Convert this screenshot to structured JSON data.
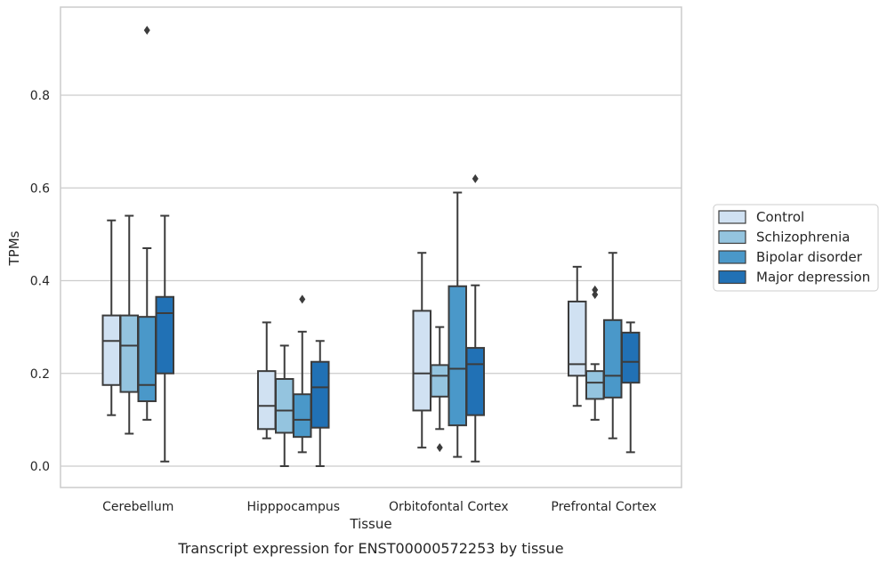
{
  "caption": "Transcript expression for ENST00000572253 by tissue",
  "colors": {
    "Control": "#d0e1f2",
    "Schizophrenia": "#94c4df",
    "Bipolar disorder": "#4a98c9",
    "Major depression": "#2171b5",
    "line": "#3c3c3c",
    "grid": "#cccccc",
    "frame": "#cccccc"
  },
  "chart_data": {
    "type": "box",
    "xlabel": "Tissue",
    "ylabel": "TPMs",
    "ylim": [
      -0.045,
      0.99
    ],
    "yticks": [
      0.0,
      0.2,
      0.4,
      0.6,
      0.8
    ],
    "ytick_labels": [
      "0.0",
      "0.2",
      "0.4",
      "0.6",
      "0.8"
    ],
    "grid": true,
    "legend_position": "right",
    "categories": [
      "Cerebellum",
      "Hipppocampus",
      "Orbitofontal Cortex",
      "Prefrontal Cortex"
    ],
    "series": [
      {
        "name": "Control",
        "boxes": [
          {
            "whislo": 0.11,
            "q1": 0.175,
            "med": 0.27,
            "q3": 0.325,
            "whishi": 0.53,
            "fliers": []
          },
          {
            "whislo": 0.06,
            "q1": 0.08,
            "med": 0.13,
            "q3": 0.205,
            "whishi": 0.31,
            "fliers": []
          },
          {
            "whislo": 0.04,
            "q1": 0.12,
            "med": 0.2,
            "q3": 0.335,
            "whishi": 0.46,
            "fliers": []
          },
          {
            "whislo": 0.13,
            "q1": 0.195,
            "med": 0.22,
            "q3": 0.355,
            "whishi": 0.43,
            "fliers": []
          }
        ]
      },
      {
        "name": "Schizophrenia",
        "boxes": [
          {
            "whislo": 0.07,
            "q1": 0.16,
            "med": 0.26,
            "q3": 0.325,
            "whishi": 0.54,
            "fliers": []
          },
          {
            "whislo": 0.0,
            "q1": 0.072,
            "med": 0.12,
            "q3": 0.188,
            "whishi": 0.26,
            "fliers": []
          },
          {
            "whislo": 0.08,
            "q1": 0.15,
            "med": 0.195,
            "q3": 0.218,
            "whishi": 0.3,
            "fliers": [
              0.04
            ]
          },
          {
            "whislo": 0.1,
            "q1": 0.145,
            "med": 0.18,
            "q3": 0.205,
            "whishi": 0.22,
            "fliers": [
              0.37,
              0.38
            ]
          }
        ]
      },
      {
        "name": "Bipolar disorder",
        "boxes": [
          {
            "whislo": 0.1,
            "q1": 0.14,
            "med": 0.175,
            "q3": 0.322,
            "whishi": 0.47,
            "fliers": [
              0.94
            ]
          },
          {
            "whislo": 0.03,
            "q1": 0.063,
            "med": 0.1,
            "q3": 0.155,
            "whishi": 0.29,
            "fliers": [
              0.36
            ]
          },
          {
            "whislo": 0.02,
            "q1": 0.088,
            "med": 0.21,
            "q3": 0.388,
            "whishi": 0.59,
            "fliers": []
          },
          {
            "whislo": 0.06,
            "q1": 0.148,
            "med": 0.195,
            "q3": 0.315,
            "whishi": 0.46,
            "fliers": []
          }
        ]
      },
      {
        "name": "Major depression",
        "boxes": [
          {
            "whislo": 0.01,
            "q1": 0.2,
            "med": 0.33,
            "q3": 0.365,
            "whishi": 0.54,
            "fliers": []
          },
          {
            "whislo": 0.0,
            "q1": 0.083,
            "med": 0.17,
            "q3": 0.225,
            "whishi": 0.27,
            "fliers": []
          },
          {
            "whislo": 0.01,
            "q1": 0.11,
            "med": 0.22,
            "q3": 0.255,
            "whishi": 0.39,
            "fliers": [
              0.62
            ]
          },
          {
            "whislo": 0.03,
            "q1": 0.18,
            "med": 0.225,
            "q3": 0.288,
            "whishi": 0.31,
            "fliers": []
          }
        ]
      }
    ]
  }
}
